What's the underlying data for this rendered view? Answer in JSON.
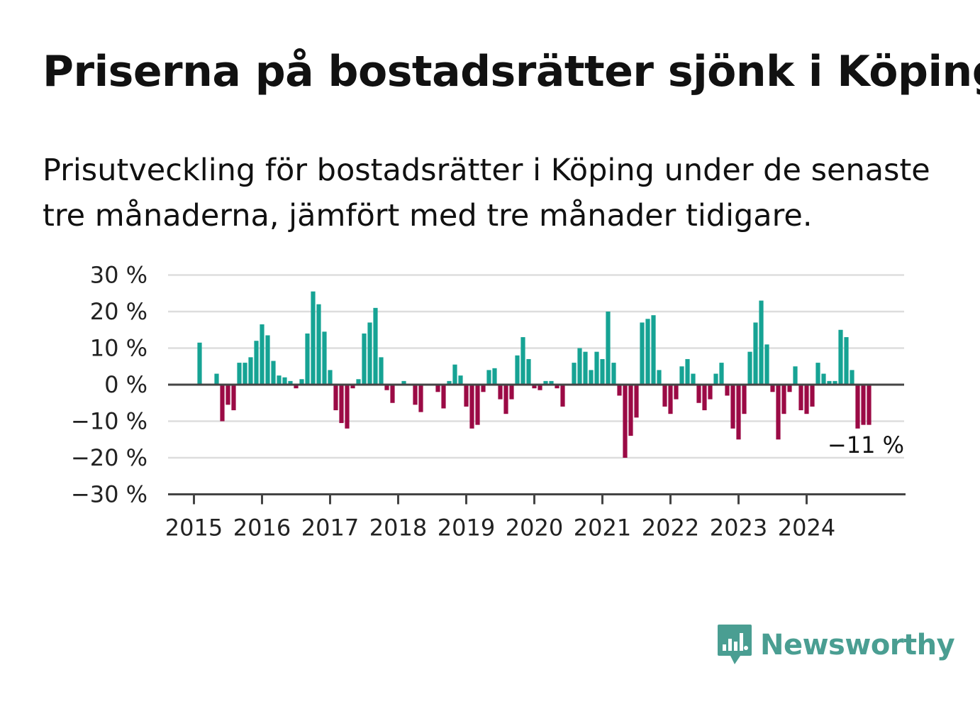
{
  "header": {
    "title": "Priserna på bostadsrätter sjönk i Köping",
    "subtitle": "Prisutveckling för bostadsrätter i Köping under de senaste tre månaderna, jämfört med tre månader tidigare."
  },
  "branding": {
    "name": "Newsworthy",
    "icon": "newsworthy-logo-icon",
    "color": "#4a9e92"
  },
  "colors": {
    "positive": "#16a394",
    "negative": "#9b0a45",
    "grid": "#dddddd",
    "axis": "#444444"
  },
  "chart_data": {
    "type": "bar",
    "title": "Priserna på bostadsrätter sjönk i Köping",
    "subtitle": "Prisutveckling för bostadsrätter i Köping under de senaste tre månaderna, jämfört med tre månader tidigare.",
    "x_start": "2015-01",
    "x_ticks": [
      "2015",
      "2016",
      "2017",
      "2018",
      "2019",
      "2020",
      "2021",
      "2022",
      "2023",
      "2024"
    ],
    "y_ticks": [
      "30 %",
      "20 %",
      "10 %",
      "0 %",
      "−10 %",
      "−20 %",
      "−30 %"
    ],
    "ylim": [
      -30,
      30
    ],
    "grid": true,
    "annotation": "−11 %",
    "values": [
      null,
      11.5,
      null,
      0,
      3,
      -10,
      -5.5,
      -7,
      6,
      6,
      7.5,
      12,
      16.5,
      13.5,
      6.5,
      2.5,
      2,
      1,
      -1,
      1.5,
      14,
      25.5,
      22,
      14.5,
      4,
      -7,
      -10.5,
      -12,
      -1,
      1.5,
      14,
      17,
      21,
      7.5,
      -1.5,
      -5,
      0,
      1,
      0,
      -5.5,
      -7.5,
      0,
      0,
      -2,
      -6.5,
      1,
      5.5,
      2.5,
      -6,
      -12,
      -11,
      -2,
      4,
      4.5,
      -4,
      -8,
      -4,
      8,
      13,
      7,
      -1,
      -1.5,
      1,
      1,
      -1,
      -6,
      0,
      6,
      10,
      9,
      4,
      9,
      7,
      20,
      6,
      -3,
      -20,
      -14,
      -9,
      17,
      18,
      19,
      4,
      -6,
      -8,
      -4,
      5,
      7,
      3,
      -5,
      -7,
      -4,
      3,
      6,
      -3,
      -12,
      -15,
      -8,
      9,
      17,
      23,
      11,
      -2,
      -15,
      -8,
      -2,
      5,
      -7,
      -8,
      -6,
      6,
      3,
      1,
      1,
      15,
      13,
      4,
      -12,
      -11,
      -11
    ]
  }
}
